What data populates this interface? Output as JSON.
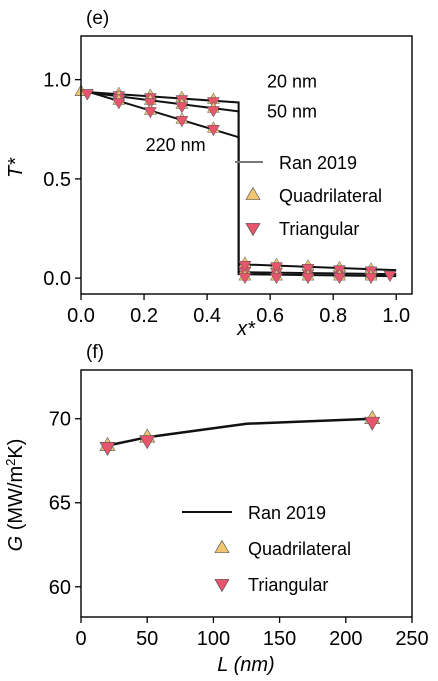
{
  "colors": {
    "quadrilateral": "#f2c572",
    "triangular": "#e8566e",
    "line": "#111111",
    "gray_line": "#777777"
  },
  "chart_data": [
    {
      "panel": "(e)",
      "type": "line",
      "xlabel": "x*",
      "ylabel": "T*",
      "xlim": [
        0,
        1.05
      ],
      "ylim": [
        -0.08,
        1.22
      ],
      "xticks": [
        0.0,
        0.2,
        0.4,
        0.6,
        0.8,
        1.0
      ],
      "xtick_labels": [
        "0.0",
        "0.2",
        "0.4",
        "0.6",
        "0.8",
        "1.0"
      ],
      "yticks": [
        0.0,
        0.5,
        1.0
      ],
      "ytick_labels": [
        "0.0",
        "0.5",
        "1.0"
      ],
      "annotations": [
        {
          "text": "20 nm",
          "x": 0.59,
          "y": 0.96
        },
        {
          "text": "50 nm",
          "x": 0.59,
          "y": 0.81
        },
        {
          "text": "220 nm",
          "x": 0.205,
          "y": 0.64
        }
      ],
      "legend": {
        "placement": "center-right",
        "entries": [
          {
            "label": "Ran 2019",
            "marker": "line"
          },
          {
            "label": "Quadrilateral",
            "marker": "triangle-up"
          },
          {
            "label": "Triangular",
            "marker": "triangle-down"
          }
        ]
      },
      "series": [
        {
          "thickness": "20 nm",
          "line": {
            "x": [
              0.0,
              0.5,
              0.5,
              1.0
            ],
            "y": [
              0.94,
              0.885,
              0.03,
              0.02
            ]
          },
          "quadrilateral": {
            "x": [
              0.0,
              0.12,
              0.22,
              0.32,
              0.42,
              0.52,
              0.62,
              0.72,
              0.82,
              0.92
            ],
            "y": [
              0.94,
              0.93,
              0.92,
              0.91,
              0.9,
              0.04,
              0.035,
              0.03,
              0.025,
              0.02
            ]
          },
          "triangular": {
            "x": [
              0.02,
              0.12,
              0.22,
              0.32,
              0.42,
              0.52,
              0.62,
              0.72,
              0.82,
              0.92,
              0.98
            ],
            "y": [
              0.93,
              0.92,
              0.91,
              0.9,
              0.89,
              0.035,
              0.03,
              0.025,
              0.02,
              0.018,
              0.015
            ]
          }
        },
        {
          "thickness": "50 nm",
          "line": {
            "x": [
              0.0,
              0.5,
              0.5,
              1.0
            ],
            "y": [
              0.94,
              0.84,
              0.07,
              0.04
            ]
          },
          "quadrilateral": {
            "x": [
              0.0,
              0.12,
              0.22,
              0.32,
              0.42,
              0.52,
              0.62,
              0.72,
              0.82,
              0.92
            ],
            "y": [
              0.94,
              0.915,
              0.895,
              0.875,
              0.855,
              0.075,
              0.068,
              0.06,
              0.052,
              0.045
            ]
          },
          "triangular": {
            "x": [
              0.02,
              0.12,
              0.22,
              0.32,
              0.42,
              0.52,
              0.62,
              0.72,
              0.82,
              0.92
            ],
            "y": [
              0.93,
              0.905,
              0.885,
              0.865,
              0.845,
              0.065,
              0.058,
              0.05,
              0.043,
              0.037
            ]
          }
        },
        {
          "thickness": "220 nm",
          "line": {
            "x": [
              0.0,
              0.5,
              0.5,
              1.0
            ],
            "y": [
              0.95,
              0.71,
              0.02,
              0.01
            ]
          },
          "quadrilateral": {
            "x": [
              0.0,
              0.12,
              0.22,
              0.32,
              0.42,
              0.52,
              0.62,
              0.72,
              0.82,
              0.92
            ],
            "y": [
              0.94,
              0.895,
              0.845,
              0.8,
              0.755,
              0.01,
              0.01,
              0.01,
              0.01,
              0.01
            ]
          },
          "triangular": {
            "x": [
              0.02,
              0.12,
              0.22,
              0.32,
              0.42,
              0.52,
              0.62,
              0.72,
              0.82,
              0.92
            ],
            "y": [
              0.93,
              0.885,
              0.84,
              0.795,
              0.75,
              0.005,
              0.005,
              0.005,
              0.005,
              0.005
            ]
          }
        }
      ]
    },
    {
      "panel": "(f)",
      "type": "line",
      "xlabel": "L (nm)",
      "ylabel": "G (MW/m²K)",
      "ylabel_parts": {
        "symbol": "G",
        "pre": " (MW/m",
        "sup": "2",
        "post": "K)"
      },
      "xlim": [
        0,
        250
      ],
      "ylim": [
        58.2,
        72.9
      ],
      "xticks": [
        0,
        50,
        100,
        150,
        200,
        250
      ],
      "xtick_labels": [
        "0",
        "50",
        "100",
        "150",
        "200",
        "250"
      ],
      "yticks": [
        60,
        65,
        70
      ],
      "ytick_labels": [
        "60",
        "65",
        "70"
      ],
      "legend": {
        "placement": "bottom-right",
        "entries": [
          {
            "label": "Ran 2019",
            "marker": "line"
          },
          {
            "label": "Quadrilateral",
            "marker": "triangle-up"
          },
          {
            "label": "Triangular",
            "marker": "triangle-down"
          }
        ]
      },
      "line": {
        "x": [
          20,
          50,
          125,
          220
        ],
        "y": [
          68.4,
          68.9,
          69.7,
          70.0
        ]
      },
      "quadrilateral": {
        "x": [
          20,
          50,
          220
        ],
        "y": [
          68.4,
          68.9,
          70.0
        ]
      },
      "triangular": {
        "x": [
          20,
          50,
          220
        ],
        "y": [
          68.3,
          68.7,
          69.8
        ]
      }
    }
  ]
}
